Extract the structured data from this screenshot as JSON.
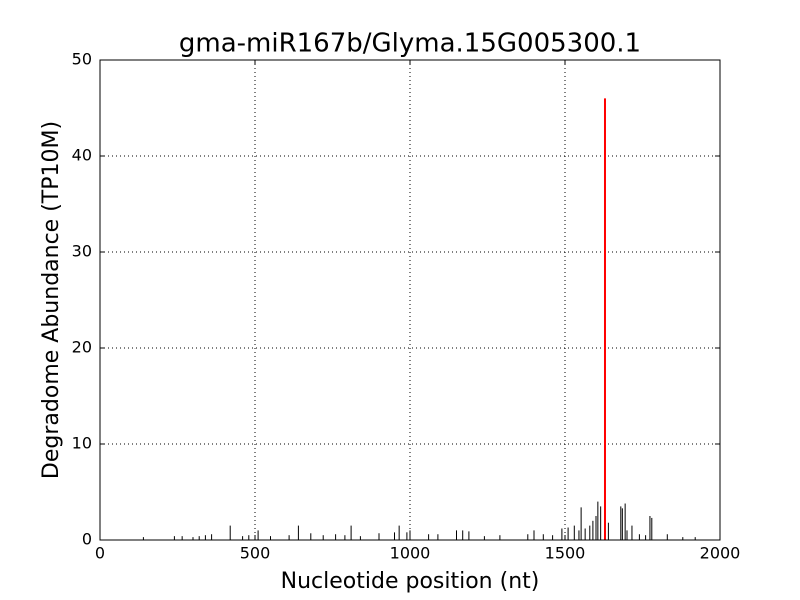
{
  "chart_data": {
    "type": "stem",
    "title": "gma-miR167b/Glyma.15G005300.1",
    "x_label": "Nucleotide position (nt)",
    "y_label": "Degradome Abundance (TP10M)",
    "xlim": [
      0,
      2000
    ],
    "xticks": [
      0,
      500,
      1000,
      1500,
      2000
    ],
    "ylim": [
      0,
      50
    ],
    "yticks": [
      0,
      10,
      20,
      30,
      40,
      50
    ],
    "grid": true,
    "series": [
      {
        "color": "#000000",
        "x": [
          140,
          240,
          265,
          300,
          320,
          340,
          360,
          420,
          460,
          480,
          510,
          550,
          610,
          640,
          680,
          720,
          760,
          790,
          810,
          840,
          900,
          950,
          965,
          990,
          1000,
          1060,
          1090,
          1150,
          1170,
          1190,
          1240,
          1290,
          1380,
          1400,
          1430,
          1460,
          1490,
          1510,
          1530,
          1545,
          1552,
          1565,
          1580,
          1590,
          1600,
          1606,
          1615,
          1640,
          1680,
          1685,
          1694,
          1700,
          1716,
          1740,
          1760,
          1774,
          1780,
          1830,
          1880,
          1920
        ],
        "values": [
          0.3,
          0.4,
          0.4,
          0.3,
          0.4,
          0.5,
          0.6,
          1.5,
          0.4,
          0.5,
          1.0,
          0.4,
          0.5,
          1.5,
          0.7,
          0.5,
          0.6,
          0.5,
          1.5,
          0.4,
          0.7,
          0.8,
          1.5,
          0.8,
          1.0,
          0.6,
          0.6,
          1.0,
          1.0,
          0.9,
          0.4,
          0.5,
          0.6,
          1.0,
          0.6,
          0.5,
          1.2,
          1.3,
          1.5,
          1.0,
          3.4,
          1.2,
          1.5,
          2.0,
          2.5,
          4.0,
          3.5,
          1.8,
          3.5,
          3.3,
          3.8,
          1.0,
          1.5,
          0.6,
          0.5,
          2.5,
          2.3,
          0.6,
          0.3,
          0.3
        ]
      },
      {
        "color": "#ff0000",
        "x": [
          1629
        ],
        "values": [
          46
        ]
      }
    ]
  }
}
